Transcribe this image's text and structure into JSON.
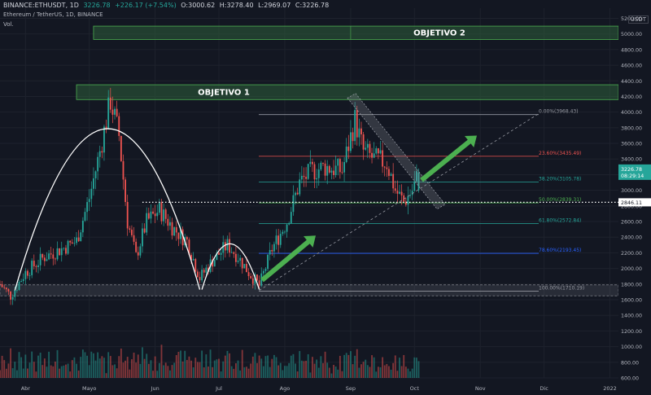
{
  "header": {
    "symbol": "BINANCE:ETHUSDT, 1D",
    "last": "3226.78",
    "change": "+226.17 (+7.54%)",
    "open": "O:3000.62",
    "high": "H:3278.40",
    "low": "L:2969.07",
    "close": "C:3226.78",
    "subtitle": "Ethereum / TetherUS, 1D, BINANCE",
    "vol_label": "Vol."
  },
  "axis": {
    "currency": "USDT",
    "y_ticks": [
      "5200.00",
      "5000.00",
      "4800.00",
      "4600.00",
      "4400.00",
      "4200.00",
      "4000.00",
      "3800.00",
      "3600.00",
      "3400.00",
      "3200.00",
      "3000.00",
      "2800.00",
      "2600.00",
      "2400.00",
      "2200.00",
      "2000.00",
      "1800.00",
      "1600.00",
      "1400.00",
      "1200.00",
      "1000.00",
      "800.00",
      "600.00"
    ],
    "x_ticks": [
      "Abr",
      "Mayo",
      "Jun",
      "Jul",
      "Ago",
      "Sep",
      "Oct",
      "Nov",
      "Dic",
      "2022"
    ]
  },
  "colors": {
    "up": "#26a69a",
    "down": "#ef5350",
    "zone": "#2e5e3a",
    "arrow": "#4caf50"
  },
  "chart_data": {
    "type": "candlestick",
    "title": "",
    "x_range": [
      "2021-03-20",
      "2022-01-05"
    ],
    "y_range": [
      600,
      5400
    ],
    "last_price": 3226.78,
    "last_price_timer": "08:29:14",
    "dotted_level_label": "2846.11",
    "dotted_level": 2846.11,
    "zones": [
      {
        "label": "OBJETIVO 2",
        "from": "2021-05-03",
        "to": "2022-01-05",
        "low": 4930,
        "high": 5100
      },
      {
        "label": "OBJETIVO 1",
        "from": "2021-04-25",
        "to": "2022-01-05",
        "low": 4160,
        "high": 4350
      }
    ],
    "fib_levels": [
      {
        "label": "0.00%(3968.43)",
        "value": 3968.43,
        "color": "#9598a1"
      },
      {
        "label": "23.60%(3435.49)",
        "value": 3435.49,
        "color": "#ef5350"
      },
      {
        "label": "38.20%(3105.78)",
        "value": 3105.78,
        "color": "#26a69a"
      },
      {
        "label": "50.00%(2839.31)",
        "value": 2839.31,
        "color": "#4caf50"
      },
      {
        "label": "61.80%(2572.84)",
        "value": 2572.84,
        "color": "#26a69a"
      },
      {
        "label": "78.60%(2193.45)",
        "value": 2193.45,
        "color": "#2962ff"
      },
      {
        "label": "100.00%(1710.19)",
        "value": 1710.19,
        "color": "#9598a1"
      }
    ],
    "support_band": {
      "low": 1650,
      "high": 1790
    },
    "candle_anchors": [
      [
        "2021-03-20",
        1800
      ],
      [
        "2021-03-25",
        1650
      ],
      [
        "2021-04-01",
        1950
      ],
      [
        "2021-04-10",
        2150
      ],
      [
        "2021-04-18",
        2250
      ],
      [
        "2021-04-25",
        2350
      ],
      [
        "2021-05-01",
        2900
      ],
      [
        "2021-05-06",
        3500
      ],
      [
        "2021-05-11",
        4150
      ],
      [
        "2021-05-15",
        3700
      ],
      [
        "2021-05-19",
        2600
      ],
      [
        "2021-05-23",
        2150
      ],
      [
        "2021-05-28",
        2600
      ],
      [
        "2021-06-03",
        2750
      ],
      [
        "2021-06-10",
        2500
      ],
      [
        "2021-06-16",
        2350
      ],
      [
        "2021-06-22",
        1880
      ],
      [
        "2021-06-28",
        2100
      ],
      [
        "2021-07-05",
        2300
      ],
      [
        "2021-07-10",
        2150
      ],
      [
        "2021-07-15",
        1950
      ],
      [
        "2021-07-20",
        1780
      ],
      [
        "2021-07-26",
        2250
      ],
      [
        "2021-08-02",
        2600
      ],
      [
        "2021-08-08",
        3100
      ],
      [
        "2021-08-14",
        3250
      ],
      [
        "2021-08-20",
        3300
      ],
      [
        "2021-08-28",
        3250
      ],
      [
        "2021-09-03",
        3900
      ],
      [
        "2021-09-07",
        3500
      ],
      [
        "2021-09-12",
        3400
      ],
      [
        "2021-09-18",
        3350
      ],
      [
        "2021-09-22",
        3000
      ],
      [
        "2021-09-26",
        2850
      ],
      [
        "2021-09-30",
        3000
      ],
      [
        "2021-10-03",
        3226.78
      ]
    ]
  }
}
